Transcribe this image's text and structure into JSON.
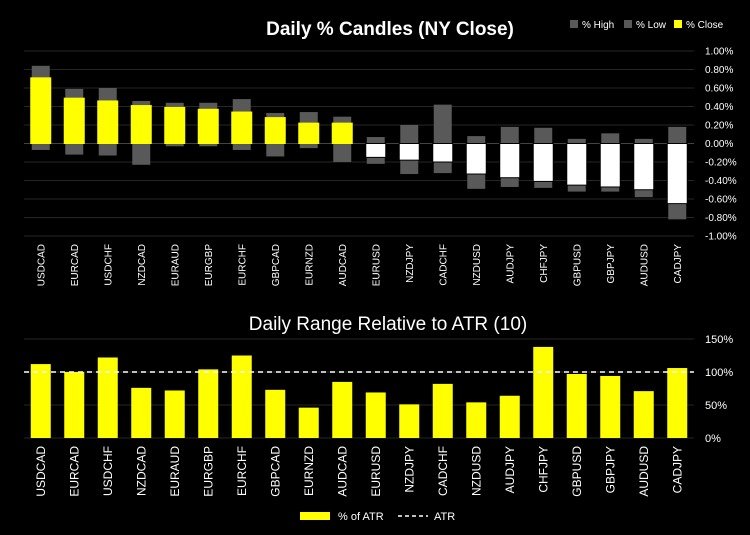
{
  "colors": {
    "background": "#000000",
    "close_up": "#ffff00",
    "close_down": "#ffffff",
    "high_low": "#595959",
    "grid": "#262626",
    "atr_line": "#ffffff",
    "text": "#ffffff"
  },
  "chart_data": [
    {
      "type": "candlestick-bar",
      "title": "Daily % Candles (NY Close)",
      "legend": [
        "% High",
        "% Low",
        "% Close"
      ],
      "legend_position": "top-right",
      "ylim": [
        -1.0,
        1.0
      ],
      "yticks": [
        "1.00%",
        "0.80%",
        "0.60%",
        "0.40%",
        "0.20%",
        "0.00%",
        "-0.20%",
        "-0.40%",
        "-0.60%",
        "-0.80%",
        "-1.00%"
      ],
      "ytick_values": [
        1.0,
        0.8,
        0.6,
        0.4,
        0.2,
        0.0,
        -0.2,
        -0.4,
        -0.6,
        -0.8,
        -1.0
      ],
      "categories": [
        "USDCAD",
        "EURCAD",
        "USDCHF",
        "NZDCAD",
        "EURAUD",
        "EURGBP",
        "EURCHF",
        "GBPCAD",
        "EURNZD",
        "AUDCAD",
        "EURUSD",
        "NZDJPY",
        "CADCHF",
        "NZDUSD",
        "AUDJPY",
        "CHFJPY",
        "GBPUSD",
        "GBPJPY",
        "AUDUSD",
        "CADJPY"
      ],
      "series": [
        {
          "name": "% High",
          "values": [
            0.84,
            0.59,
            0.6,
            0.46,
            0.44,
            0.44,
            0.48,
            0.33,
            0.34,
            0.29,
            0.07,
            0.2,
            0.42,
            0.08,
            0.18,
            0.17,
            0.05,
            0.11,
            0.05,
            0.18
          ]
        },
        {
          "name": "% Low",
          "values": [
            -0.07,
            -0.12,
            -0.13,
            -0.23,
            -0.03,
            -0.03,
            -0.07,
            -0.14,
            -0.05,
            -0.2,
            -0.22,
            -0.33,
            -0.32,
            -0.49,
            -0.47,
            -0.48,
            -0.52,
            -0.52,
            -0.58,
            -0.82
          ]
        },
        {
          "name": "% Close",
          "values": [
            0.71,
            0.49,
            0.46,
            0.41,
            0.39,
            0.37,
            0.34,
            0.28,
            0.22,
            0.22,
            -0.15,
            -0.18,
            -0.2,
            -0.33,
            -0.37,
            -0.41,
            -0.45,
            -0.47,
            -0.5,
            -0.65
          ]
        }
      ]
    },
    {
      "type": "bar",
      "title": "Daily Range Relative to ATR (10)",
      "legend": [
        "% of ATR",
        "ATR"
      ],
      "legend_position": "bottom-center",
      "ylim": [
        0,
        150
      ],
      "yticks": [
        "150%",
        "100%",
        "50%",
        "0%"
      ],
      "ytick_values": [
        150,
        100,
        50,
        0
      ],
      "atr_level": 100,
      "categories": [
        "USDCAD",
        "EURCAD",
        "USDCHF",
        "NZDCAD",
        "EURAUD",
        "EURGBP",
        "EURCHF",
        "GBPCAD",
        "EURNZD",
        "AUDCAD",
        "EURUSD",
        "NZDJPY",
        "CADCHF",
        "NZDUSD",
        "AUDJPY",
        "CHFJPY",
        "GBPUSD",
        "GBPJPY",
        "AUDUSD",
        "CADJPY"
      ],
      "values": [
        112,
        100,
        122,
        76,
        72,
        104,
        125,
        73,
        46,
        85,
        69,
        51,
        82,
        54,
        64,
        138,
        97,
        94,
        71,
        106
      ]
    }
  ]
}
